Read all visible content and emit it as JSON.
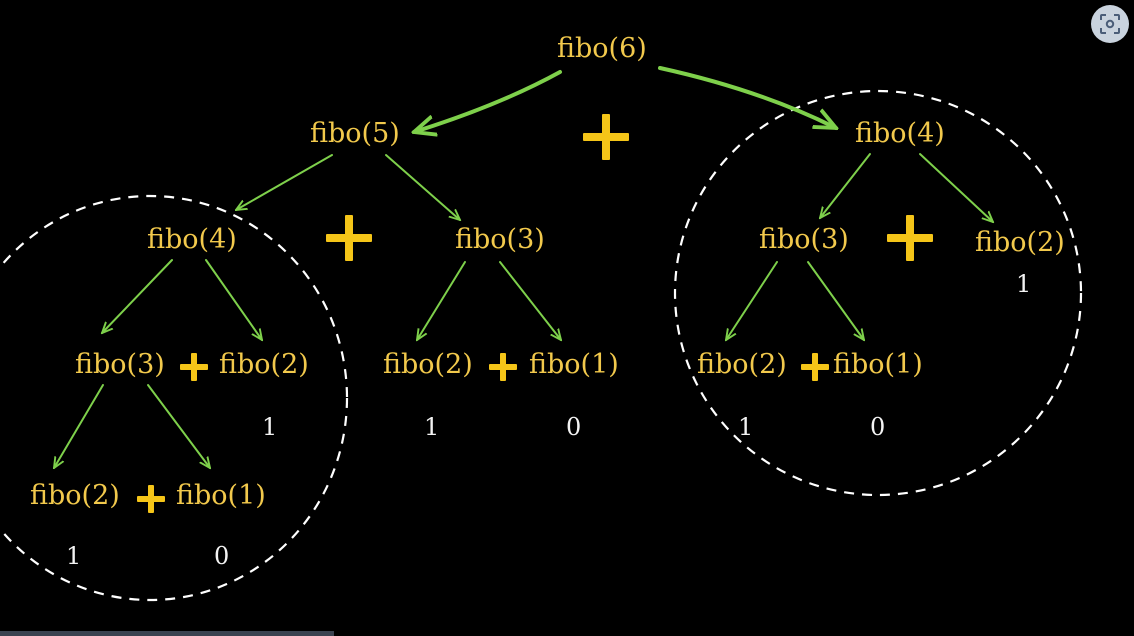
{
  "diagram": {
    "nodes": [
      {
        "id": "n6",
        "label": "fibo(6)"
      },
      {
        "id": "n5",
        "label": "fibo(5)"
      },
      {
        "id": "n4r",
        "label": "fibo(4)"
      },
      {
        "id": "n4l",
        "label": "fibo(4)"
      },
      {
        "id": "n3m",
        "label": "fibo(3)"
      },
      {
        "id": "n3r",
        "label": "fibo(3)"
      },
      {
        "id": "n2r",
        "label": "fibo(2)"
      },
      {
        "id": "n3l",
        "label": "fibo(3)"
      },
      {
        "id": "n2l",
        "label": "fibo(2)"
      },
      {
        "id": "n2m",
        "label": "fibo(2)"
      },
      {
        "id": "n1m",
        "label": "fibo(1)"
      },
      {
        "id": "n2rr",
        "label": "fibo(2)"
      },
      {
        "id": "n1rr",
        "label": "fibo(1)"
      },
      {
        "id": "n2ll",
        "label": "fibo(2)"
      },
      {
        "id": "n1ll",
        "label": "fibo(1)"
      }
    ],
    "values": [
      {
        "id": "v_n2r",
        "text": "1"
      },
      {
        "id": "v_n2l",
        "text": "1"
      },
      {
        "id": "v_n2m",
        "text": "1"
      },
      {
        "id": "v_n1m",
        "text": "0"
      },
      {
        "id": "v_n2rr",
        "text": "1"
      },
      {
        "id": "v_n1rr",
        "text": "0"
      },
      {
        "id": "v_n2ll",
        "text": "1"
      },
      {
        "id": "v_n1ll",
        "text": "0"
      }
    ],
    "edges": [
      [
        "n6",
        "n5"
      ],
      [
        "n6",
        "n4r"
      ],
      [
        "n5",
        "n4l"
      ],
      [
        "n5",
        "n3m"
      ],
      [
        "n4r",
        "n3r"
      ],
      [
        "n4r",
        "n2r"
      ],
      [
        "n4l",
        "n3l"
      ],
      [
        "n4l",
        "n2l"
      ],
      [
        "n3m",
        "n2m"
      ],
      [
        "n3m",
        "n1m"
      ],
      [
        "n3r",
        "n2rr"
      ],
      [
        "n3r",
        "n1rr"
      ],
      [
        "n3l",
        "n2ll"
      ],
      [
        "n3l",
        "n1ll"
      ]
    ],
    "colors": {
      "label": "#f2c94c",
      "value": "#f3f3f3",
      "arrow": "#7ed04b",
      "plus": "#f5c518",
      "circle": "#ffffff",
      "background": "#000000"
    },
    "icons": {
      "corner": "screen-capture-icon"
    }
  }
}
